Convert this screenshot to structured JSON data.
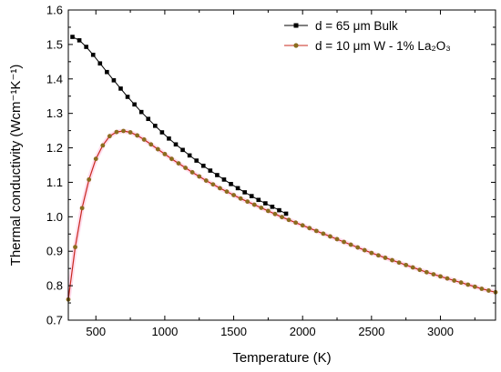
{
  "chart_data": {
    "type": "line",
    "xlabel": "Temperature (K)",
    "ylabel": "Thermal conductivity (Wcm⁻¹K⁻¹)",
    "xlim": [
      300,
      3400
    ],
    "ylim": [
      0.7,
      1.6
    ],
    "x_ticks": [
      500,
      1000,
      1500,
      2000,
      2500,
      3000
    ],
    "y_ticks": [
      0.7,
      0.8,
      0.9,
      1.0,
      1.1,
      1.2,
      1.3,
      1.4,
      1.5,
      1.6
    ],
    "grid": false,
    "legend_position": "top-right",
    "series": [
      {
        "name": "d = 65 μm Bulk",
        "color": "#000000",
        "marker": "square",
        "x": [
          330,
          380,
          430,
          480,
          530,
          580,
          630,
          680,
          730,
          780,
          830,
          880,
          930,
          980,
          1030,
          1080,
          1130,
          1180,
          1230,
          1280,
          1330,
          1380,
          1430,
          1480,
          1530,
          1580,
          1630,
          1680,
          1730,
          1780,
          1830,
          1880
        ],
        "y": [
          1.522,
          1.512,
          1.493,
          1.47,
          1.445,
          1.42,
          1.396,
          1.372,
          1.348,
          1.326,
          1.304,
          1.284,
          1.264,
          1.245,
          1.227,
          1.21,
          1.194,
          1.178,
          1.163,
          1.148,
          1.134,
          1.121,
          1.108,
          1.095,
          1.083,
          1.071,
          1.06,
          1.049,
          1.039,
          1.029,
          1.019,
          1.009
        ]
      },
      {
        "name": "d = 10 μm W - 1% La₂O₃",
        "color": "#c8281e",
        "marker_color": "#8a6d1e",
        "marker": "circle",
        "x": [
          300,
          350,
          400,
          450,
          500,
          550,
          600,
          650,
          700,
          750,
          800,
          850,
          900,
          950,
          1000,
          1050,
          1100,
          1150,
          1200,
          1250,
          1300,
          1350,
          1400,
          1450,
          1500,
          1550,
          1600,
          1650,
          1700,
          1750,
          1800,
          1850,
          1900,
          1950,
          2000,
          2050,
          2100,
          2150,
          2200,
          2250,
          2300,
          2350,
          2400,
          2450,
          2500,
          2550,
          2600,
          2650,
          2700,
          2750,
          2800,
          2850,
          2900,
          2950,
          3000,
          3050,
          3100,
          3150,
          3200,
          3250,
          3300,
          3350,
          3400
        ],
        "y": [
          0.76,
          0.912,
          1.025,
          1.108,
          1.168,
          1.207,
          1.234,
          1.246,
          1.249,
          1.245,
          1.236,
          1.224,
          1.21,
          1.196,
          1.182,
          1.168,
          1.155,
          1.142,
          1.129,
          1.117,
          1.105,
          1.094,
          1.083,
          1.073,
          1.063,
          1.053,
          1.044,
          1.035,
          1.026,
          1.017,
          1.008,
          0.999,
          0.991,
          0.983,
          0.975,
          0.967,
          0.959,
          0.951,
          0.943,
          0.935,
          0.927,
          0.919,
          0.911,
          0.903,
          0.895,
          0.888,
          0.881,
          0.874,
          0.867,
          0.86,
          0.853,
          0.846,
          0.839,
          0.833,
          0.827,
          0.821,
          0.815,
          0.809,
          0.803,
          0.797,
          0.791,
          0.786,
          0.781
        ]
      }
    ]
  }
}
